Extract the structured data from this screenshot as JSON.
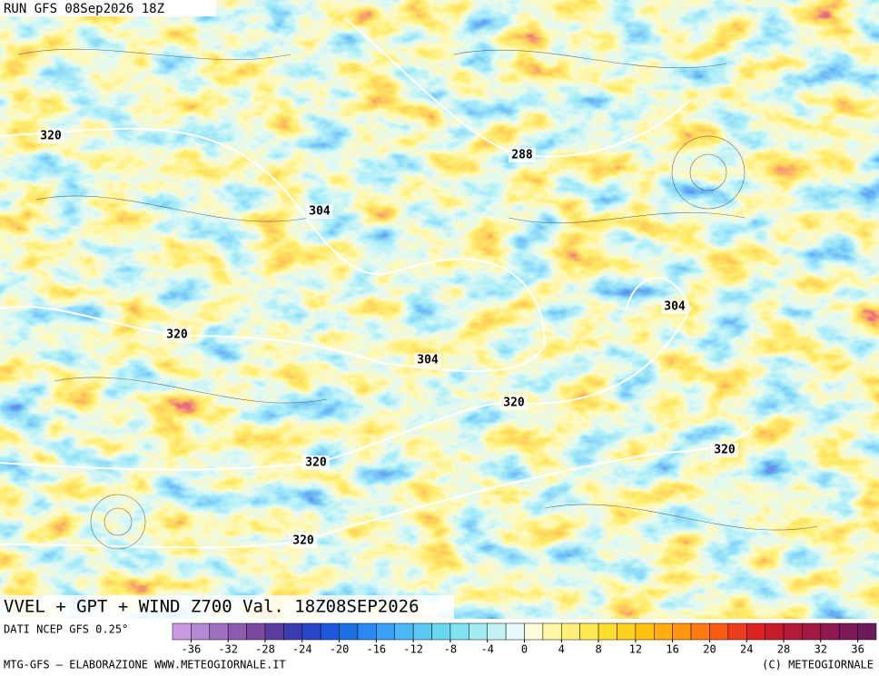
{
  "header": "RUN GFS 08Sep2026 18Z",
  "title": "VVEL + GPT + WIND Z700 Val. 18Z08SEP2026",
  "source": "DATI NCEP GFS 0.25°",
  "footer_left": "MTG-GFS — ELABORAZIONE WWW.METEOGIORNALE.IT",
  "footer_right": "(C) METEOGIORNALE",
  "contour_labels": [
    320,
    288,
    304,
    304,
    320,
    304,
    320,
    320,
    320,
    320
  ],
  "colorbar": {
    "lim": [
      -38,
      38
    ],
    "ticks": [
      -36,
      -32,
      -28,
      -24,
      -20,
      -16,
      -12,
      -8,
      -4,
      0,
      4,
      8,
      12,
      16,
      20,
      24,
      28,
      32,
      36
    ],
    "colors": [
      "#c89ae0",
      "#b488d4",
      "#a070c0",
      "#8c5cb0",
      "#7a4aa0",
      "#5a3c9c",
      "#3c3cb0",
      "#2a44c8",
      "#1e58dc",
      "#1e6ee6",
      "#2a88f0",
      "#3aa0f4",
      "#4cb8f6",
      "#5ccaf4",
      "#6cd8f0",
      "#80e2ee",
      "#a0eaf0",
      "#c4f2f4",
      "#e4fafa",
      "#fffbd8",
      "#fff6a8",
      "#fff07a",
      "#ffe850",
      "#ffde30",
      "#ffd01c",
      "#ffc010",
      "#ffac10",
      "#ff9410",
      "#ff7a10",
      "#f85c14",
      "#ec3e1c",
      "#dc2424",
      "#c81c2c",
      "#b41a38",
      "#a01a44",
      "#8c1a50",
      "#7c1a58",
      "#6c1a5c"
    ]
  }
}
